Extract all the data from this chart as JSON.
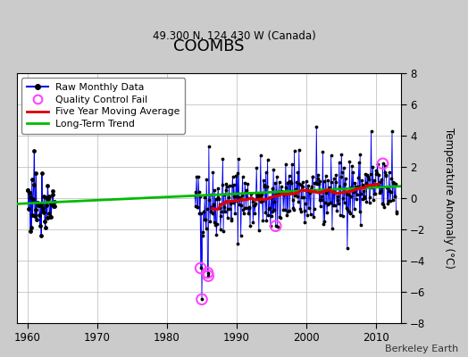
{
  "title": "COOMBS",
  "subtitle": "49.300 N, 124.430 W (Canada)",
  "ylabel": "Temperature Anomaly (°C)",
  "xlabel_credit": "Berkeley Earth",
  "xlim": [
    1958.5,
    2013.5
  ],
  "ylim": [
    -8,
    8
  ],
  "yticks": [
    -8,
    -6,
    -4,
    -2,
    0,
    2,
    4,
    6,
    8
  ],
  "xticks": [
    1960,
    1970,
    1980,
    1990,
    2000,
    2010
  ],
  "background_color": "#cbcbcb",
  "plot_bg_color": "#ffffff",
  "raw_line_color": "#0000ee",
  "raw_dot_color": "#000000",
  "qc_fail_color": "#ff44ff",
  "moving_avg_color": "#dd0000",
  "trend_color": "#00bb00",
  "trend_x": [
    1958.5,
    2013.5
  ],
  "trend_y": [
    -0.38,
    0.75
  ],
  "seed_early": 77,
  "seed_dense": 42
}
